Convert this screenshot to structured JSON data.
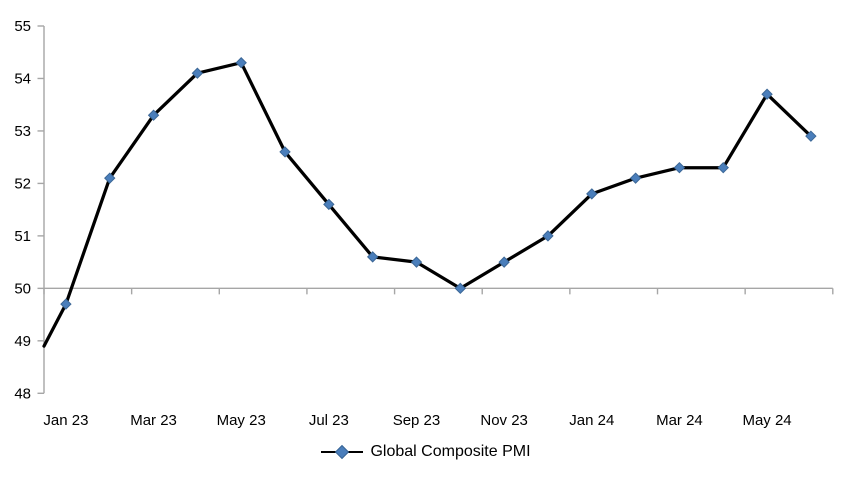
{
  "window": {
    "background_color": "#FFFFFF"
  },
  "legend": {
    "label": "Global Composite PMI"
  },
  "chart_data": {
    "type": "line",
    "title": "",
    "xlabel": "",
    "ylabel": "",
    "categories": [
      "Jan 23",
      "Feb 23",
      "Mar 23",
      "Apr 23",
      "May 23",
      "Jun 23",
      "Jul 23",
      "Aug 23",
      "Sep 23",
      "Oct 23",
      "Nov 23",
      "Dec 23",
      "Jan 24",
      "Feb 24",
      "Mar 24",
      "Apr 24",
      "May 24",
      "Jun 24"
    ],
    "series": [
      {
        "name": "Global Composite PMI",
        "values": [
          49.7,
          52.1,
          53.3,
          54.1,
          54.3,
          52.6,
          51.6,
          50.6,
          50.5,
          50.0,
          50.5,
          51.0,
          51.8,
          52.1,
          52.3,
          52.3,
          53.7,
          52.9
        ]
      }
    ],
    "x_tick_labels": [
      "Jan 23",
      "Mar 23",
      "May 23",
      "Jul 23",
      "Sep 23",
      "Nov 23",
      "Jan 24",
      "Mar 24",
      "May 24"
    ],
    "x_tick_label_every_n_categories": 2,
    "y_tick_labels": [
      "48",
      "49",
      "50",
      "51",
      "52",
      "53",
      "54",
      "55"
    ],
    "ylim": [
      48,
      55
    ],
    "grid": false,
    "category_axis_crosses_at": 50,
    "line_enters_left_axis_at": 48.9,
    "legend_position": "bottom-center",
    "styles": {
      "line_color": "#000000",
      "marker_shape": "diamond",
      "marker_color": "#4A7EBB",
      "marker_border_color": "#3C6796",
      "axis_color": "#A6A6A6",
      "text_color": "#000000"
    }
  }
}
